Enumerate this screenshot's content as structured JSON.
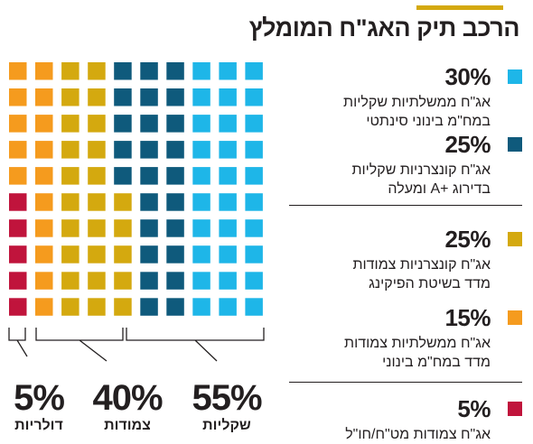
{
  "title": "הרכב תיק האג\"ח המומלץ",
  "colors": {
    "accent": "#d4a90f",
    "text": "#231f20",
    "gov_synthetic": "#1eb6e8",
    "corp_aplus": "#0f5a7c",
    "corp_cpi": "#d4a90f",
    "gov_cpi": "#f59b1e",
    "usd": "#c0143c"
  },
  "chart_data": {
    "type": "waffle",
    "title": "הרכב תיק האג\"ח המומלץ",
    "total_cells": 100,
    "series": [
      {
        "key": "gov_synthetic",
        "percent": "30%",
        "value": 30,
        "label": "אג\"ח ממשלתיות שקליות במח\"מ בינוני סינתטי"
      },
      {
        "key": "corp_aplus",
        "percent": "25%",
        "value": 25,
        "label": "אג\"ח קונצרניות שקליות בדירוג +A ומעלה"
      },
      {
        "key": "corp_cpi",
        "percent": "25%",
        "value": 25,
        "label": "אג\"ח קונצרניות צמודות מדד בשיטת הפיקינג"
      },
      {
        "key": "gov_cpi",
        "percent": "15%",
        "value": 15,
        "label": "אג\"ח ממשלתיות צמודות מדד במח\"מ בינוני"
      },
      {
        "key": "usd",
        "percent": "5%",
        "value": 5,
        "label": "אג\"ח צמודות מט\"ח/חו\"ל"
      }
    ],
    "groups": [
      {
        "percent": "55%",
        "label": "שקליות"
      },
      {
        "percent": "40%",
        "label": "צמודות"
      },
      {
        "percent": "5%",
        "label": "דולריות"
      }
    ],
    "column_composition": [
      {
        "usd": 5,
        "gov_cpi": 5
      },
      {
        "gov_cpi": 10
      },
      {
        "corp_cpi": 10
      },
      {
        "corp_cpi": 10
      },
      {
        "corp_cpi": 5,
        "corp_aplus": 5
      },
      {
        "corp_aplus": 10
      },
      {
        "corp_aplus": 10
      },
      {
        "gov_synthetic": 10
      },
      {
        "gov_synthetic": 10
      },
      {
        "gov_synthetic": 10
      }
    ]
  },
  "legend": {
    "items": [
      {
        "percent": "30%",
        "line1": "אג\"ח ממשלתיות שקליות",
        "line2": "במח\"מ בינוני סינתטי"
      },
      {
        "percent": "25%",
        "line1": "אג\"ח קונצרניות שקליות",
        "line2": "בדירוג +A ומעלה"
      },
      {
        "percent": "25%",
        "line1": "אג\"ח קונצרניות צמודות",
        "line2": "מדד בשיטת הפיקינג"
      },
      {
        "percent": "15%",
        "line1": "אג\"ח ממשלתיות צמודות",
        "line2": "מדד במח\"מ בינוני"
      },
      {
        "percent": "5%",
        "line1": "אג\"ח צמודות מט\"ח/חו\"ל",
        "line2": ""
      }
    ]
  },
  "groups": [
    {
      "percent": "55%",
      "label": "שקליות"
    },
    {
      "percent": "40%",
      "label": "צמודות"
    },
    {
      "percent": "5%",
      "label": "דולריות"
    }
  ]
}
